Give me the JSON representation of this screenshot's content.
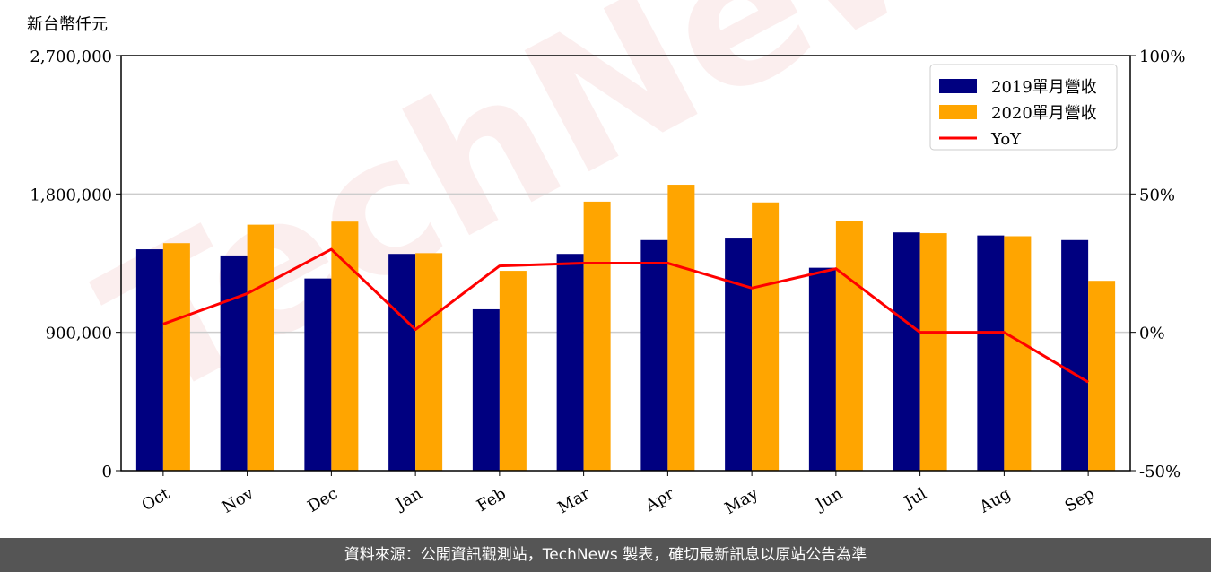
{
  "chart_data": {
    "type": "bar",
    "unit_label": "新台幣仟元",
    "categories": [
      "Oct",
      "Nov",
      "Dec",
      "Jan",
      "Feb",
      "Mar",
      "Apr",
      "May",
      "Jun",
      "Jul",
      "Aug",
      "Sep"
    ],
    "series": [
      {
        "name": "2019單月營收",
        "type": "bar",
        "color": "#000080",
        "values": [
          1440000,
          1400000,
          1250000,
          1410000,
          1050000,
          1410000,
          1500000,
          1510000,
          1320000,
          1550000,
          1530000,
          1500000
        ]
      },
      {
        "name": "2020單月營收",
        "type": "bar",
        "color": "#ffa500",
        "values": [
          1480000,
          1600000,
          1620000,
          1415000,
          1300000,
          1750000,
          1860000,
          1745000,
          1625000,
          1545000,
          1525000,
          1235000
        ]
      },
      {
        "name": "YoY",
        "type": "line",
        "axis": "right",
        "color": "#ff0000",
        "values": [
          3,
          14,
          30,
          1,
          24,
          25,
          25,
          16,
          23,
          0,
          0,
          -18
        ]
      }
    ],
    "y_left": {
      "min": 0,
      "max": 2700000,
      "ticks": [
        "0",
        "900,000",
        "1,800,000",
        "2,700,000"
      ]
    },
    "y_right": {
      "min": -50,
      "max": 100,
      "ticks": [
        "-50%",
        "0%",
        "50%",
        "100%"
      ]
    },
    "grid": "horizontal",
    "legend_position": "top-right"
  },
  "watermark": "TechNews",
  "footer_text": "資料來源：公開資訊觀測站，TechNews 製表，確切最新訊息以原站公告為準"
}
